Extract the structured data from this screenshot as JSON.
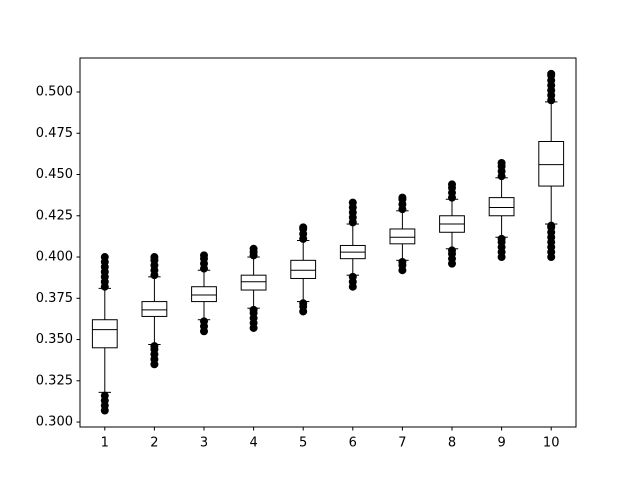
{
  "chart_data": {
    "type": "box",
    "categories": [
      "1",
      "2",
      "3",
      "4",
      "5",
      "6",
      "7",
      "8",
      "9",
      "10"
    ],
    "color": "#000000",
    "boxes": [
      {
        "whislo": 0.318,
        "q1": 0.345,
        "med": 0.356,
        "q3": 0.362,
        "whishi": 0.381,
        "fliers": [
          0.307,
          0.31,
          0.313,
          0.316,
          0.382,
          0.385,
          0.388,
          0.391,
          0.394,
          0.397,
          0.4
        ]
      },
      {
        "whislo": 0.347,
        "q1": 0.364,
        "med": 0.368,
        "q3": 0.373,
        "whishi": 0.388,
        "fliers": [
          0.335,
          0.338,
          0.341,
          0.344,
          0.346,
          0.389,
          0.392,
          0.395,
          0.398,
          0.4
        ]
      },
      {
        "whislo": 0.362,
        "q1": 0.373,
        "med": 0.377,
        "q3": 0.382,
        "whishi": 0.392,
        "fliers": [
          0.355,
          0.358,
          0.361,
          0.393,
          0.396,
          0.399,
          0.401
        ]
      },
      {
        "whislo": 0.369,
        "q1": 0.38,
        "med": 0.385,
        "q3": 0.389,
        "whishi": 0.4,
        "fliers": [
          0.357,
          0.36,
          0.363,
          0.366,
          0.368,
          0.401,
          0.403,
          0.405
        ]
      },
      {
        "whislo": 0.373,
        "q1": 0.387,
        "med": 0.392,
        "q3": 0.398,
        "whishi": 0.41,
        "fliers": [
          0.367,
          0.37,
          0.372,
          0.411,
          0.414,
          0.417,
          0.418
        ]
      },
      {
        "whislo": 0.389,
        "q1": 0.399,
        "med": 0.403,
        "q3": 0.407,
        "whishi": 0.42,
        "fliers": [
          0.382,
          0.385,
          0.388,
          0.421,
          0.424,
          0.427,
          0.43,
          0.433
        ]
      },
      {
        "whislo": 0.398,
        "q1": 0.408,
        "med": 0.412,
        "q3": 0.417,
        "whishi": 0.428,
        "fliers": [
          0.392,
          0.395,
          0.397,
          0.429,
          0.432,
          0.435,
          0.436
        ]
      },
      {
        "whislo": 0.405,
        "q1": 0.415,
        "med": 0.42,
        "q3": 0.425,
        "whishi": 0.435,
        "fliers": [
          0.396,
          0.399,
          0.402,
          0.404,
          0.436,
          0.439,
          0.442,
          0.444
        ]
      },
      {
        "whislo": 0.412,
        "q1": 0.425,
        "med": 0.43,
        "q3": 0.436,
        "whishi": 0.448,
        "fliers": [
          0.4,
          0.403,
          0.406,
          0.409,
          0.411,
          0.449,
          0.452,
          0.455,
          0.457
        ]
      },
      {
        "whislo": 0.42,
        "q1": 0.443,
        "med": 0.456,
        "q3": 0.47,
        "whishi": 0.494,
        "fliers": [
          0.4,
          0.403,
          0.406,
          0.409,
          0.412,
          0.415,
          0.418,
          0.419,
          0.495,
          0.498,
          0.501,
          0.504,
          0.507,
          0.51,
          0.511
        ]
      }
    ],
    "ylim": [
      0.297,
      0.5206
    ],
    "yticks": [
      {
        "value": 0.3,
        "label": "0.300"
      },
      {
        "value": 0.325,
        "label": "0.325"
      },
      {
        "value": 0.35,
        "label": "0.350"
      },
      {
        "value": 0.375,
        "label": "0.375"
      },
      {
        "value": 0.4,
        "label": "0.400"
      },
      {
        "value": 0.425,
        "label": "0.425"
      },
      {
        "value": 0.45,
        "label": "0.450"
      },
      {
        "value": 0.475,
        "label": "0.475"
      },
      {
        "value": 0.5,
        "label": "0.500"
      }
    ],
    "grid": false
  }
}
